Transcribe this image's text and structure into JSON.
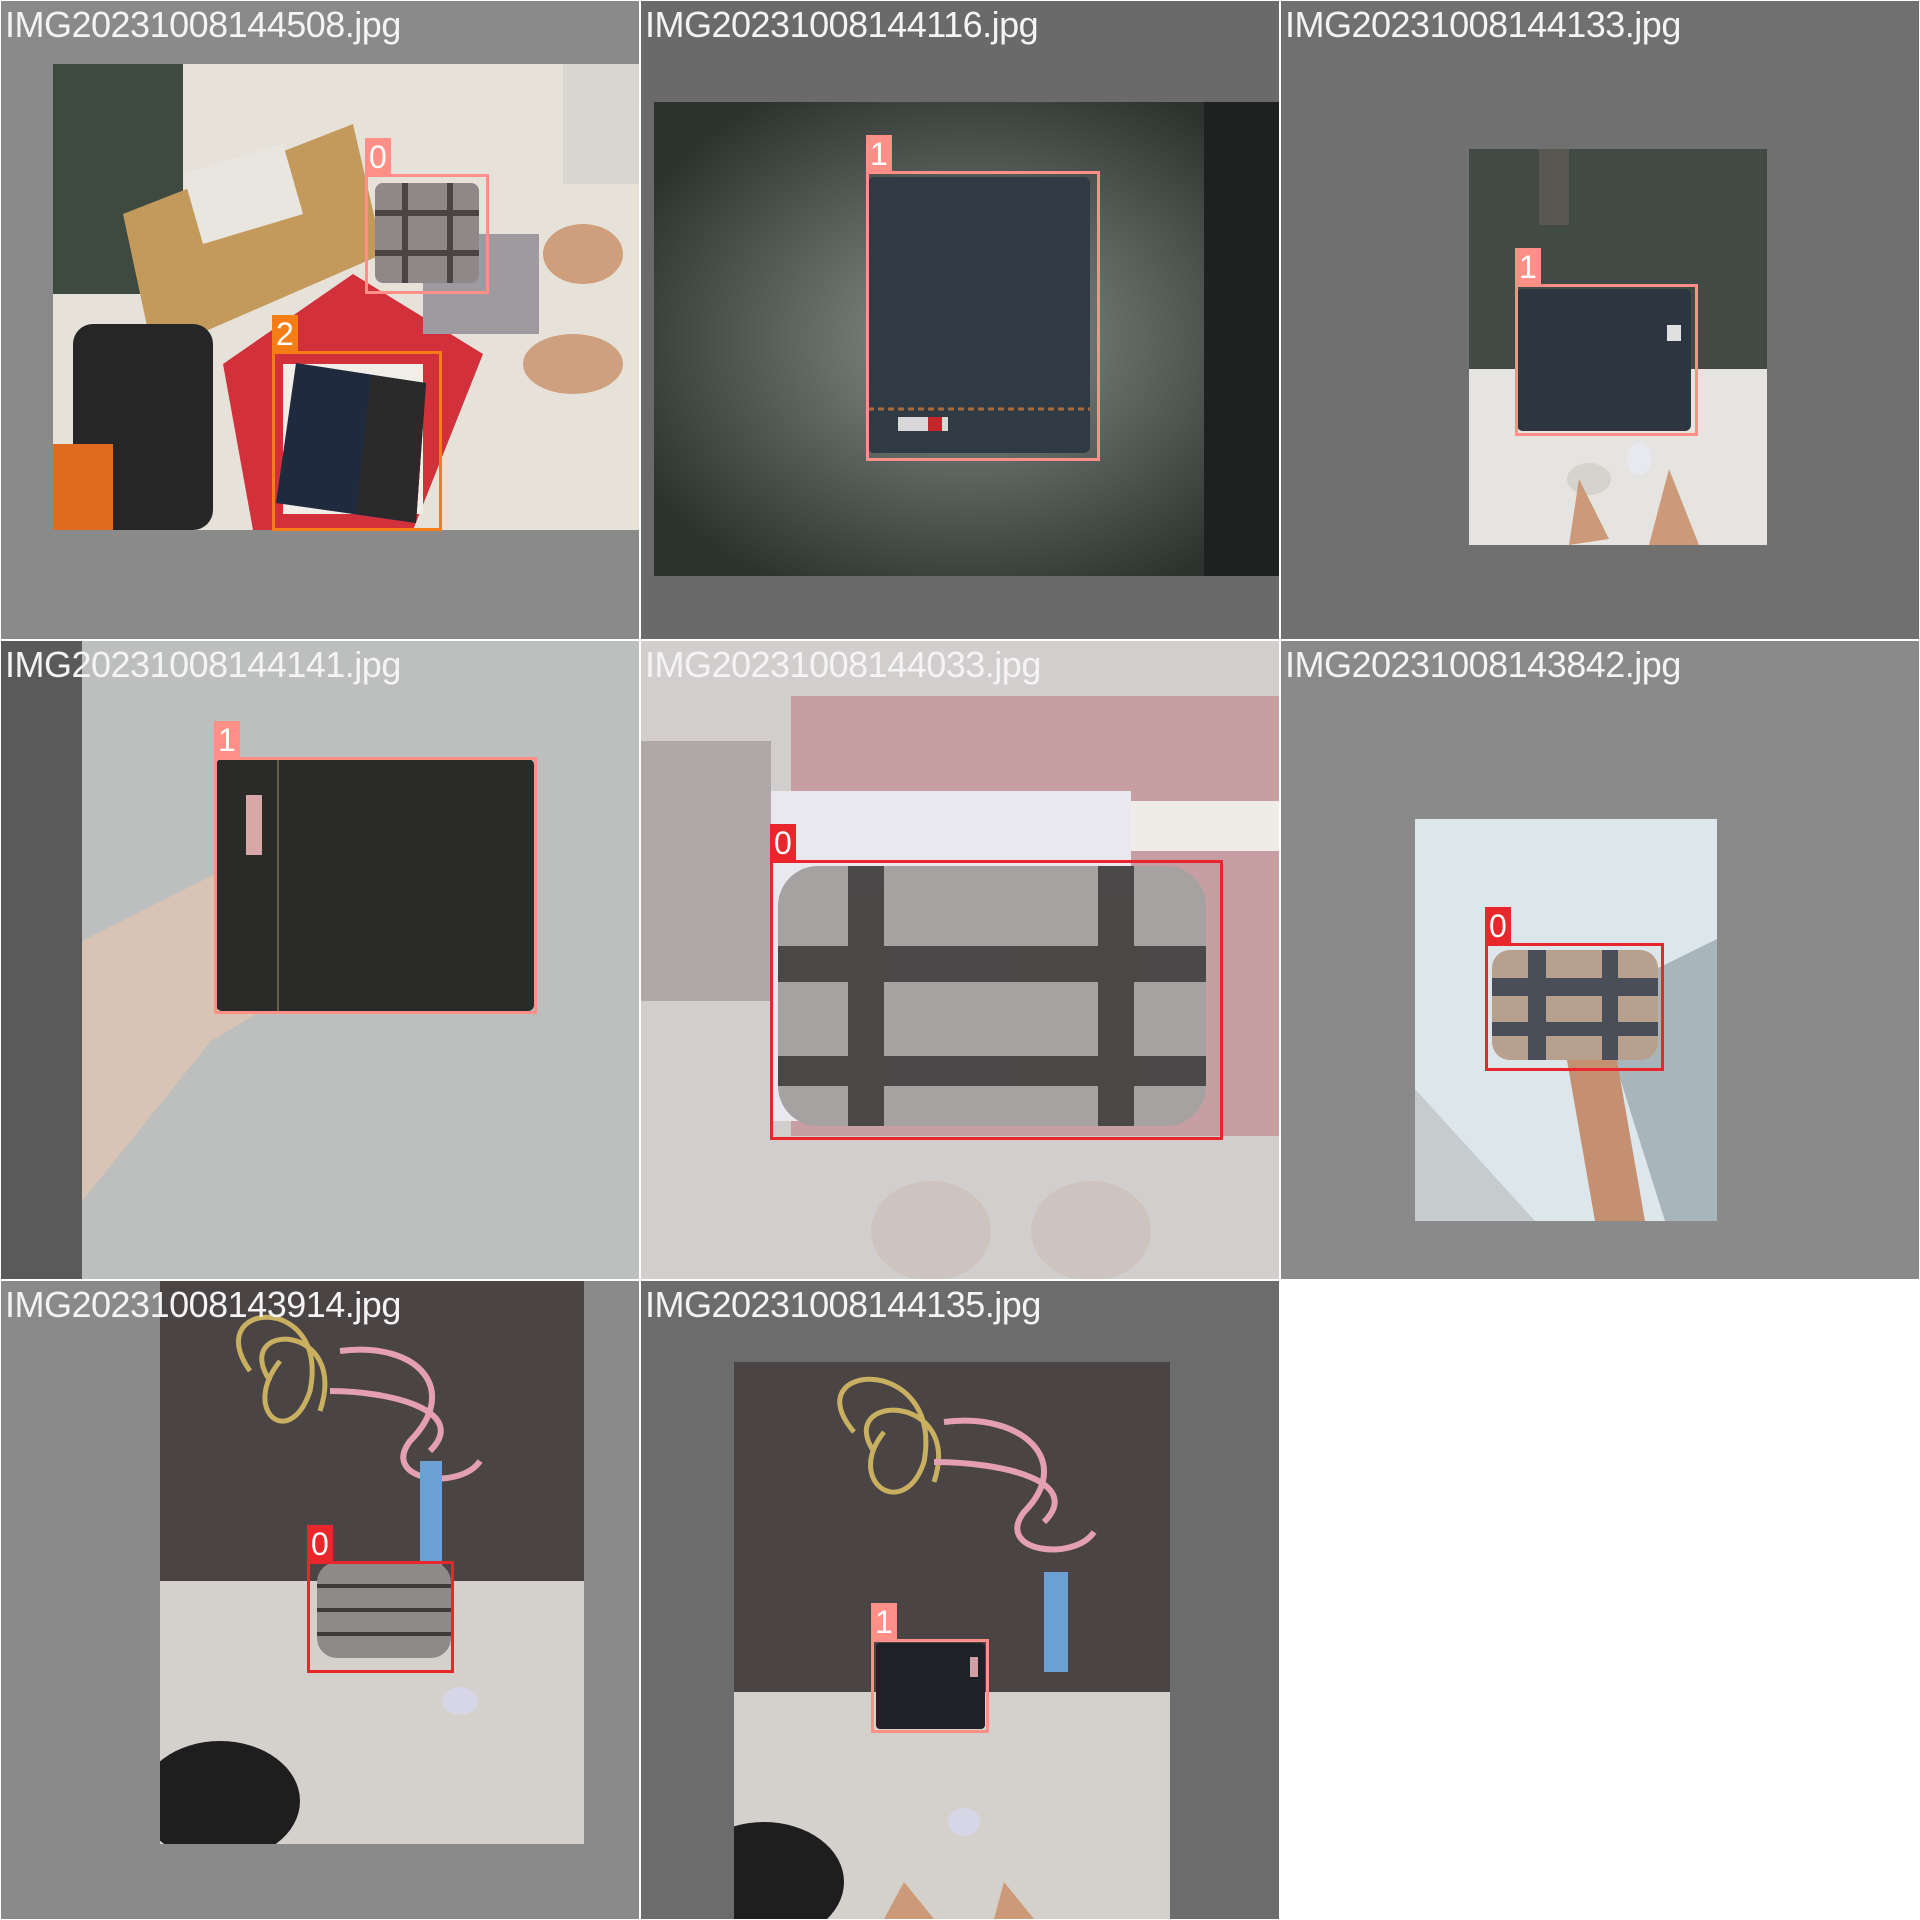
{
  "colors": {
    "class_0": "#e8262b",
    "class_1": "#ff8f87",
    "class_2": "#f47d16",
    "tile_border": "#ffffff"
  },
  "tiles": [
    {
      "filename": "IMG20231008144508.jpg",
      "detections": [
        {
          "label": "0"
        },
        {
          "label": "2"
        }
      ]
    },
    {
      "filename": "IMG20231008144116.jpg",
      "detections": [
        {
          "label": "1"
        }
      ]
    },
    {
      "filename": "IMG20231008144133.jpg",
      "detections": [
        {
          "label": "1"
        }
      ]
    },
    {
      "filename": "IMG20231008144141.jpg",
      "detections": [
        {
          "label": "1"
        }
      ]
    },
    {
      "filename": "IMG20231008144033.jpg",
      "detections": [
        {
          "label": "0"
        }
      ]
    },
    {
      "filename": "IMG20231008143842.jpg",
      "detections": [
        {
          "label": "0"
        }
      ]
    },
    {
      "filename": "IMG20231008143914.jpg",
      "detections": [
        {
          "label": "0"
        }
      ]
    },
    {
      "filename": "IMG20231008144135.jpg",
      "detections": [
        {
          "label": "1"
        }
      ]
    }
  ]
}
